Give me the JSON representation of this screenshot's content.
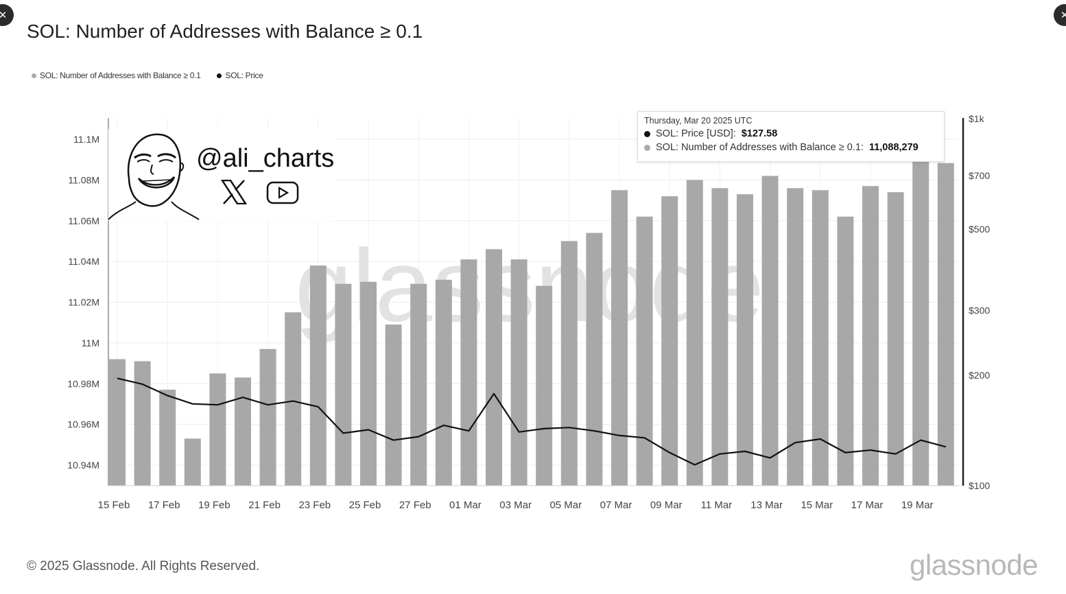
{
  "page": {
    "title": "SOL: Number of Addresses with Balance ≥ 0.1",
    "footer": "© 2025 Glassnode. All Rights Reserved.",
    "brand": "glassnode",
    "watermark": "glassnode",
    "handle": "@ali_charts"
  },
  "legend": [
    {
      "label": "SOL: Number of Addresses with Balance ≥ 0.1",
      "color": "#aaaaaa"
    },
    {
      "label": "SOL: Price",
      "color": "#111111"
    }
  ],
  "tooltip": {
    "date": "Thursday, Mar 20 2025 UTC",
    "price_label": "SOL: Price [USD]:",
    "price_value": "$127.58",
    "addr_label": "SOL: Number of Addresses with Balance ≥ 0.1:",
    "addr_value": "11,088,279"
  },
  "icons": [
    "close-icon",
    "x-logo-icon",
    "youtube-icon"
  ],
  "chart_data": {
    "type": "bar",
    "title": "SOL: Number of Addresses with Balance ≥ 0.1",
    "left_ticks": [
      "11.1M",
      "11.08M",
      "11.06M",
      "11.04M",
      "11.02M",
      "11M",
      "10.98M",
      "10.96M",
      "10.94M"
    ],
    "left_tick_values": [
      11.1,
      11.08,
      11.06,
      11.04,
      11.02,
      11.0,
      10.98,
      10.96,
      10.94
    ],
    "right_ticks": [
      "$1k",
      "$700",
      "$500",
      "$300",
      "$200",
      "$100"
    ],
    "right_tick_values": [
      1000,
      700,
      500,
      300,
      200,
      100
    ],
    "right_scale": "log",
    "x_ticks": [
      "15 Feb",
      "17 Feb",
      "19 Feb",
      "21 Feb",
      "23 Feb",
      "25 Feb",
      "27 Feb",
      "01 Mar",
      "03 Mar",
      "05 Mar",
      "07 Mar",
      "09 Mar",
      "11 Mar",
      "13 Mar",
      "15 Mar",
      "17 Mar",
      "19 Mar"
    ],
    "x": [
      "15 Feb",
      "16 Feb",
      "17 Feb",
      "18 Feb",
      "19 Feb",
      "20 Feb",
      "21 Feb",
      "22 Feb",
      "23 Feb",
      "24 Feb",
      "25 Feb",
      "26 Feb",
      "27 Feb",
      "28 Feb",
      "01 Mar",
      "02 Mar",
      "03 Mar",
      "04 Mar",
      "05 Mar",
      "06 Mar",
      "07 Mar",
      "08 Mar",
      "09 Mar",
      "10 Mar",
      "11 Mar",
      "12 Mar",
      "13 Mar",
      "14 Mar",
      "15 Mar",
      "16 Mar",
      "17 Mar",
      "18 Mar",
      "19 Mar",
      "20 Mar"
    ],
    "series": [
      {
        "name": "SOL: Number of Addresses with Balance ≥ 0.1",
        "type": "bar",
        "axis": "left",
        "unit": "M",
        "color": "#a6a6a6",
        "values": [
          10.992,
          10.991,
          10.977,
          10.953,
          10.985,
          10.983,
          10.997,
          11.015,
          11.038,
          11.029,
          11.03,
          11.009,
          11.029,
          11.031,
          11.041,
          11.046,
          11.041,
          11.028,
          11.05,
          11.054,
          11.075,
          11.062,
          11.072,
          11.08,
          11.076,
          11.073,
          11.082,
          11.076,
          11.075,
          11.062,
          11.077,
          11.074,
          11.091,
          11.0883
        ]
      },
      {
        "name": "SOL: Price",
        "type": "line",
        "axis": "right",
        "unit": "USD",
        "color": "#111111",
        "values": [
          196,
          189,
          176,
          167,
          166,
          174,
          166,
          170,
          164,
          139,
          142,
          133,
          136,
          146,
          141,
          178,
          140,
          143,
          144,
          141,
          137,
          135,
          123,
          114,
          122,
          124,
          119,
          131,
          134,
          123,
          125,
          122,
          133,
          127.58
        ]
      }
    ],
    "ylim_left": [
      10.93,
      11.11
    ],
    "ylim_right": [
      100,
      1000
    ],
    "grid": true,
    "legend_position": "top-left"
  }
}
